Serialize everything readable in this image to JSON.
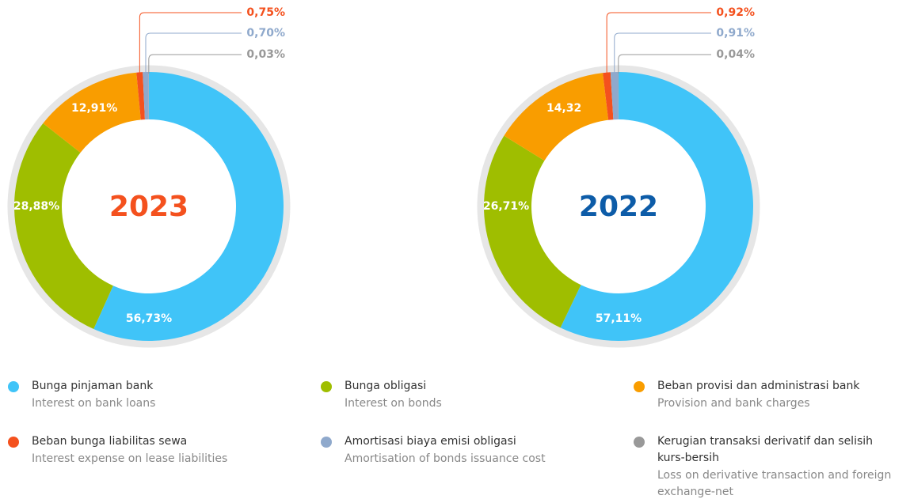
{
  "chart_data": [
    {
      "type": "donut",
      "title": "2023",
      "title_color": "#f4511e",
      "values": [
        56.73,
        28.88,
        12.91,
        0.75,
        0.7,
        0.03
      ],
      "value_labels": [
        "56,73%",
        "28,88%",
        "12,91%",
        "0,75%",
        "0,70%",
        "0,03%"
      ]
    },
    {
      "type": "donut",
      "title": "2022",
      "title_color": "#0d5ca8",
      "values": [
        57.11,
        26.71,
        14.32,
        0.92,
        0.91,
        0.04
      ],
      "value_labels": [
        "57,11%",
        "26,71%",
        "14,32",
        "0,92%",
        "0,91%",
        "0,04%"
      ]
    }
  ],
  "legend": [
    {
      "label": "Bunga pinjaman bank",
      "sublabel": "Interest on bank loans",
      "color": "#40c4f8"
    },
    {
      "label": "Bunga obligasi",
      "sublabel": "Interest on bonds",
      "color": "#9fbe00"
    },
    {
      "label": "Beban provisi dan administrasi bank",
      "sublabel": "Provision and bank charges",
      "color": "#f99d00"
    },
    {
      "label": "Beban bunga liabilitas sewa",
      "sublabel": "Interest expense on lease liabilities",
      "color": "#f4511e"
    },
    {
      "label": "Amortisasi biaya emisi obligasi",
      "sublabel": "Amortisation of bonds issuance cost",
      "color": "#8fa9cc"
    },
    {
      "label": "Kerugian transaksi derivatif dan selisih kurs-bersih",
      "sublabel": "Loss on derivative transaction and foreign exchange-net",
      "color": "#999999"
    }
  ]
}
